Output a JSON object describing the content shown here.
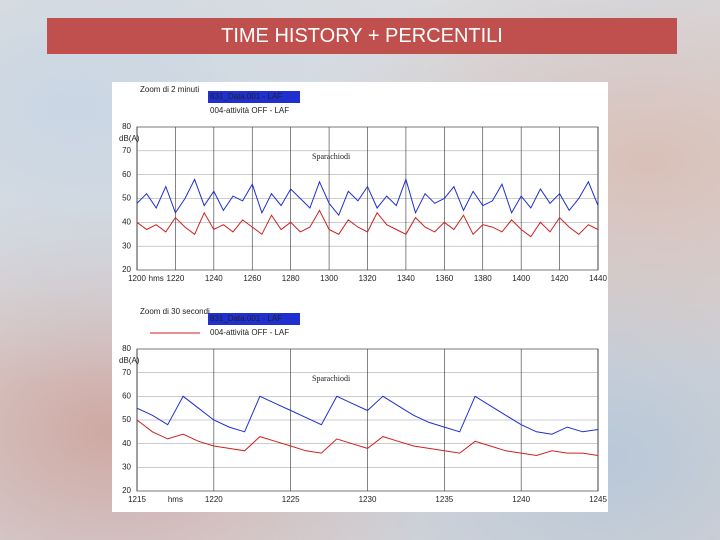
{
  "title": "TIME HISTORY + PERCENTILI",
  "chart_data": [
    {
      "type": "line",
      "title": "Zoom di 2 minuti",
      "y_label": "dB(A)",
      "x_label": "hms",
      "annotation": "Sparachiodi",
      "xlim": [
        1200,
        1440
      ],
      "xticks": [
        1200,
        1220,
        1240,
        1260,
        1280,
        1300,
        1320,
        1340,
        1360,
        1380,
        1400,
        1420,
        1440
      ],
      "ylim": [
        20,
        80
      ],
      "yticks": [
        80,
        70,
        60,
        50,
        40,
        30,
        20
      ],
      "grid": true,
      "x": [
        1200,
        1205,
        1210,
        1215,
        1220,
        1225,
        1230,
        1235,
        1240,
        1245,
        1250,
        1255,
        1260,
        1265,
        1270,
        1275,
        1280,
        1285,
        1290,
        1295,
        1300,
        1305,
        1310,
        1315,
        1320,
        1325,
        1330,
        1335,
        1340,
        1345,
        1350,
        1355,
        1360,
        1365,
        1370,
        1375,
        1380,
        1385,
        1390,
        1395,
        1400,
        1405,
        1410,
        1415,
        1420,
        1425,
        1430,
        1435,
        1440
      ],
      "series": [
        {
          "name": "831_Data.001 - LAF",
          "color": "#1f2fd0",
          "values": [
            48,
            52,
            46,
            55,
            44,
            50,
            58,
            47,
            53,
            45,
            51,
            49,
            56,
            44,
            52,
            47,
            54,
            50,
            46,
            57,
            48,
            43,
            53,
            49,
            55,
            46,
            51,
            47,
            58,
            44,
            52,
            48,
            50,
            55,
            45,
            53,
            47,
            49,
            56,
            44,
            51,
            46,
            54,
            48,
            52,
            45,
            50,
            57,
            47
          ]
        },
        {
          "name": "004-attività OFF - LAF",
          "color": "#d02020",
          "values": [
            40,
            37,
            39,
            36,
            42,
            38,
            35,
            44,
            37,
            39,
            36,
            41,
            38,
            35,
            43,
            37,
            40,
            36,
            38,
            45,
            37,
            35,
            41,
            38,
            36,
            44,
            39,
            37,
            35,
            42,
            38,
            36,
            40,
            37,
            43,
            35,
            39,
            38,
            36,
            41,
            37,
            34,
            40,
            36,
            42,
            38,
            35,
            39,
            37
          ]
        }
      ]
    },
    {
      "type": "line",
      "title": "Zoom di 30 secondi",
      "y_label": "dB(A)",
      "x_label": "hms",
      "annotation": "Sparachiodi",
      "xlim": [
        1215,
        1245
      ],
      "xticks": [
        1215,
        1220,
        1225,
        1230,
        1235,
        1240,
        1245
      ],
      "ylim": [
        20,
        80
      ],
      "yticks": [
        80,
        70,
        60,
        50,
        40,
        30,
        20
      ],
      "grid": true,
      "x": [
        1215,
        1216,
        1217,
        1218,
        1219,
        1220,
        1221,
        1222,
        1223,
        1224,
        1225,
        1226,
        1227,
        1228,
        1229,
        1230,
        1231,
        1232,
        1233,
        1234,
        1235,
        1236,
        1237,
        1238,
        1239,
        1240,
        1241,
        1242,
        1243,
        1244,
        1245
      ],
      "series": [
        {
          "name": "831_Data.001 - LAF",
          "color": "#1f2fd0",
          "values": [
            55,
            52,
            48,
            60,
            55,
            50,
            47,
            45,
            60,
            57,
            54,
            51,
            48,
            60,
            57,
            54,
            60,
            56,
            52,
            49,
            47,
            45,
            60,
            56,
            52,
            48,
            45,
            44,
            47,
            45,
            46
          ]
        },
        {
          "name": "004-attività OFF - LAF",
          "color": "#d02020",
          "values": [
            50,
            45,
            42,
            44,
            41,
            39,
            38,
            37,
            43,
            41,
            39,
            37,
            36,
            42,
            40,
            38,
            43,
            41,
            39,
            38,
            37,
            36,
            41,
            39,
            37,
            36,
            35,
            37,
            36,
            36,
            35
          ]
        }
      ]
    }
  ]
}
